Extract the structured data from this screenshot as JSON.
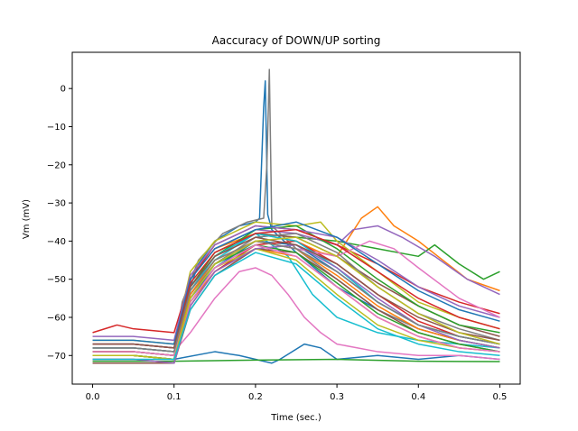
{
  "chart_data": {
    "type": "line",
    "title": "Aaccuracy of DOWN/UP sorting",
    "xlabel": "Time (sec.)",
    "ylabel": "Vm (mV)",
    "xlim": [
      -0.025,
      0.525
    ],
    "ylim": [
      -77.5,
      9.5
    ],
    "xticks": [
      0.0,
      0.1,
      0.2,
      0.3,
      0.4,
      0.5
    ],
    "xtick_labels": [
      "0.0",
      "0.1",
      "0.2",
      "0.3",
      "0.4",
      "0.5"
    ],
    "yticks": [
      0,
      -10,
      -20,
      -30,
      -40,
      -50,
      -60,
      -70
    ],
    "ytick_labels": [
      "0",
      "−10",
      "−20",
      "−30",
      "−40",
      "−50",
      "−60",
      "−70"
    ],
    "grid": false,
    "legend": "none",
    "palette": [
      "#1f77b4",
      "#ff7f0e",
      "#2ca02c",
      "#d62728",
      "#9467bd",
      "#8c564b",
      "#e377c2",
      "#7f7f7f",
      "#bcbd22",
      "#17becf"
    ],
    "series": [
      {
        "color": "#1f77b4",
        "x": [
          0.0,
          0.05,
          0.1,
          0.11,
          0.13,
          0.15,
          0.18,
          0.2,
          0.205,
          0.21,
          0.212,
          0.215,
          0.22,
          0.25,
          0.3,
          0.35,
          0.4,
          0.45,
          0.5
        ],
        "y": [
          -70,
          -70,
          -71,
          -58,
          -46,
          -40,
          -36,
          -35,
          -34,
          -5,
          2,
          -33,
          -37,
          -43,
          -52,
          -58,
          -63,
          -66,
          -68
        ]
      },
      {
        "color": "#7f7f7f",
        "x": [
          0.0,
          0.05,
          0.1,
          0.11,
          0.13,
          0.16,
          0.19,
          0.21,
          0.214,
          0.217,
          0.22,
          0.25,
          0.3,
          0.35,
          0.4,
          0.45,
          0.5
        ],
        "y": [
          -69,
          -69,
          -70,
          -56,
          -45,
          -38,
          -35,
          -34,
          -20,
          5,
          -36,
          -42,
          -50,
          -58,
          -63,
          -66,
          -68
        ]
      },
      {
        "color": "#1f77b4",
        "x": [
          0.0,
          0.05,
          0.1,
          0.15,
          0.18,
          0.2,
          0.22,
          0.23,
          0.26,
          0.28,
          0.3,
          0.35,
          0.4,
          0.45,
          0.5
        ],
        "y": [
          -70,
          -70,
          -71,
          -69,
          -70,
          -71,
          -72,
          -71,
          -67,
          -68,
          -71,
          -70,
          -71,
          -70,
          -71
        ]
      },
      {
        "color": "#2ca02c",
        "x": [
          0.0,
          0.1,
          0.2,
          0.3,
          0.4,
          0.5
        ],
        "y": [
          -71.5,
          -71.5,
          -71.2,
          -71,
          -71.5,
          -71.6
        ]
      },
      {
        "color": "#e377c2",
        "x": [
          0.0,
          0.05,
          0.1,
          0.12,
          0.15,
          0.18,
          0.2,
          0.22,
          0.24,
          0.26,
          0.28,
          0.3,
          0.35,
          0.4,
          0.45,
          0.5
        ],
        "y": [
          -68,
          -68,
          -69,
          -64,
          -55,
          -48,
          -47,
          -49,
          -54,
          -60,
          -64,
          -67,
          -69,
          -70,
          -70,
          -71
        ]
      },
      {
        "color": "#ff7f0e",
        "x": [
          0.0,
          0.05,
          0.1,
          0.12,
          0.15,
          0.2,
          0.25,
          0.28,
          0.3,
          0.33,
          0.35,
          0.37,
          0.4,
          0.43,
          0.46,
          0.5
        ],
        "y": [
          -67,
          -67,
          -68,
          -50,
          -42,
          -38,
          -40,
          -43,
          -44,
          -34,
          -31,
          -36,
          -40,
          -45,
          -50,
          -53
        ]
      },
      {
        "color": "#2ca02c",
        "x": [
          0.0,
          0.05,
          0.1,
          0.12,
          0.15,
          0.2,
          0.25,
          0.3,
          0.35,
          0.4,
          0.42,
          0.45,
          0.48,
          0.5
        ],
        "y": [
          -69,
          -69,
          -70,
          -52,
          -43,
          -38,
          -39,
          -40,
          -42,
          -44,
          -41,
          -46,
          -50,
          -48
        ]
      },
      {
        "color": "#9467bd",
        "x": [
          0.0,
          0.05,
          0.1,
          0.12,
          0.15,
          0.2,
          0.25,
          0.3,
          0.32,
          0.35,
          0.38,
          0.42,
          0.46,
          0.5
        ],
        "y": [
          -67,
          -67,
          -68,
          -50,
          -42,
          -37,
          -38,
          -41,
          -37,
          -36,
          -39,
          -44,
          -50,
          -54
        ]
      },
      {
        "color": "#d62728",
        "x": [
          0.0,
          0.03,
          0.05,
          0.1,
          0.12,
          0.15,
          0.2,
          0.25,
          0.3,
          0.35,
          0.4,
          0.45,
          0.5
        ],
        "y": [
          -64,
          -62,
          -63,
          -64,
          -50,
          -41,
          -36,
          -37,
          -41,
          -46,
          -52,
          -56,
          -59
        ]
      },
      {
        "color": "#8c564b",
        "x": [
          0.0,
          0.05,
          0.1,
          0.12,
          0.15,
          0.2,
          0.25,
          0.3,
          0.35,
          0.4,
          0.45,
          0.5
        ],
        "y": [
          -68,
          -68,
          -69,
          -52,
          -44,
          -38,
          -39,
          -44,
          -51,
          -57,
          -62,
          -65
        ]
      },
      {
        "color": "#bcbd22",
        "x": [
          0.0,
          0.05,
          0.1,
          0.12,
          0.15,
          0.2,
          0.25,
          0.28,
          0.3,
          0.35,
          0.4,
          0.45,
          0.5
        ],
        "y": [
          -66,
          -66,
          -67,
          -48,
          -40,
          -35,
          -36,
          -35,
          -40,
          -48,
          -56,
          -60,
          -63
        ]
      },
      {
        "color": "#17becf",
        "x": [
          0.0,
          0.05,
          0.1,
          0.12,
          0.15,
          0.2,
          0.24,
          0.27,
          0.3,
          0.35,
          0.4,
          0.45,
          0.5
        ],
        "y": [
          -67,
          -67,
          -68,
          -54,
          -45,
          -38,
          -44,
          -54,
          -60,
          -64,
          -66,
          -67,
          -68
        ]
      },
      {
        "color": "#1f77b4",
        "x": [
          0.0,
          0.05,
          0.1,
          0.12,
          0.15,
          0.2,
          0.25,
          0.3,
          0.35,
          0.4,
          0.45,
          0.5
        ],
        "y": [
          -69,
          -69,
          -70,
          -55,
          -47,
          -40,
          -41,
          -48,
          -56,
          -62,
          -65,
          -67
        ]
      },
      {
        "color": "#ff7f0e",
        "x": [
          0.0,
          0.05,
          0.1,
          0.12,
          0.15,
          0.2,
          0.25,
          0.3,
          0.35,
          0.4,
          0.45,
          0.5
        ],
        "y": [
          -70,
          -70,
          -71,
          -56,
          -48,
          -42,
          -44,
          -52,
          -60,
          -65,
          -68,
          -69
        ]
      },
      {
        "color": "#2ca02c",
        "x": [
          0.0,
          0.05,
          0.1,
          0.12,
          0.15,
          0.2,
          0.25,
          0.3,
          0.35,
          0.4,
          0.45,
          0.5
        ],
        "y": [
          -68,
          -68,
          -69,
          -53,
          -44,
          -37,
          -36,
          -42,
          -50,
          -57,
          -62,
          -64
        ]
      },
      {
        "color": "#d62728",
        "x": [
          0.0,
          0.05,
          0.1,
          0.12,
          0.15,
          0.2,
          0.25,
          0.3,
          0.35,
          0.4,
          0.45,
          0.5
        ],
        "y": [
          -71,
          -71,
          -72,
          -57,
          -48,
          -41,
          -40,
          -46,
          -54,
          -61,
          -65,
          -67
        ]
      },
      {
        "color": "#9467bd",
        "x": [
          0.0,
          0.05,
          0.1,
          0.12,
          0.15,
          0.2,
          0.25,
          0.3,
          0.35,
          0.4,
          0.45,
          0.5
        ],
        "y": [
          -65,
          -65,
          -66,
          -49,
          -41,
          -36,
          -37,
          -39,
          -45,
          -52,
          -57,
          -60
        ]
      },
      {
        "color": "#8c564b",
        "x": [
          0.0,
          0.05,
          0.1,
          0.12,
          0.15,
          0.2,
          0.25,
          0.3,
          0.35,
          0.4,
          0.45,
          0.5
        ],
        "y": [
          -72,
          -72,
          -72,
          -58,
          -49,
          -42,
          -43,
          -50,
          -58,
          -64,
          -67,
          -69
        ]
      },
      {
        "color": "#e377c2",
        "x": [
          0.0,
          0.05,
          0.1,
          0.12,
          0.15,
          0.2,
          0.25,
          0.3,
          0.34,
          0.37,
          0.4,
          0.45,
          0.5
        ],
        "y": [
          -68,
          -68,
          -69,
          -55,
          -46,
          -40,
          -42,
          -44,
          -40,
          -42,
          -47,
          -55,
          -60
        ]
      },
      {
        "color": "#7f7f7f",
        "x": [
          0.0,
          0.05,
          0.1,
          0.12,
          0.15,
          0.2,
          0.25,
          0.3,
          0.35,
          0.4,
          0.45,
          0.5
        ],
        "y": [
          -69,
          -69,
          -70,
          -54,
          -46,
          -39,
          -38,
          -43,
          -52,
          -59,
          -63,
          -66
        ]
      },
      {
        "color": "#bcbd22",
        "x": [
          0.0,
          0.05,
          0.1,
          0.12,
          0.15,
          0.2,
          0.25,
          0.3,
          0.35,
          0.4,
          0.45,
          0.5
        ],
        "y": [
          -70,
          -70,
          -71,
          -56,
          -47,
          -42,
          -45,
          -54,
          -62,
          -66,
          -68,
          -69
        ]
      },
      {
        "color": "#17becf",
        "x": [
          0.0,
          0.05,
          0.1,
          0.12,
          0.15,
          0.2,
          0.25,
          0.3,
          0.35,
          0.4,
          0.45,
          0.5
        ],
        "y": [
          -68,
          -68,
          -69,
          -53,
          -44,
          -38,
          -40,
          -47,
          -56,
          -62,
          -65,
          -67
        ]
      },
      {
        "color": "#1f77b4",
        "x": [
          0.0,
          0.05,
          0.1,
          0.12,
          0.15,
          0.2,
          0.25,
          0.3,
          0.35,
          0.4,
          0.45,
          0.5
        ],
        "y": [
          -66,
          -66,
          -67,
          -50,
          -42,
          -37,
          -35,
          -39,
          -46,
          -53,
          -58,
          -61
        ]
      },
      {
        "color": "#ff7f0e",
        "x": [
          0.0,
          0.05,
          0.1,
          0.12,
          0.15,
          0.2,
          0.25,
          0.3,
          0.35,
          0.4,
          0.45,
          0.5
        ],
        "y": [
          -69,
          -69,
          -70,
          -54,
          -45,
          -40,
          -42,
          -49,
          -57,
          -63,
          -66,
          -68
        ]
      },
      {
        "color": "#2ca02c",
        "x": [
          0.0,
          0.05,
          0.1,
          0.12,
          0.15,
          0.2,
          0.25,
          0.3,
          0.35,
          0.4,
          0.45,
          0.5
        ],
        "y": [
          -70,
          -70,
          -71,
          -55,
          -46,
          -41,
          -43,
          -51,
          -59,
          -64,
          -67,
          -69
        ]
      },
      {
        "color": "#d62728",
        "x": [
          0.0,
          0.05,
          0.1,
          0.12,
          0.15,
          0.2,
          0.25,
          0.3,
          0.35,
          0.4,
          0.45,
          0.5
        ],
        "y": [
          -67,
          -67,
          -68,
          -51,
          -43,
          -38,
          -37,
          -41,
          -48,
          -55,
          -60,
          -63
        ]
      },
      {
        "color": "#9467bd",
        "x": [
          0.0,
          0.05,
          0.1,
          0.12,
          0.15,
          0.2,
          0.25,
          0.3,
          0.35,
          0.4,
          0.45,
          0.5
        ],
        "y": [
          -71,
          -71,
          -72,
          -57,
          -48,
          -42,
          -41,
          -47,
          -55,
          -62,
          -66,
          -68
        ]
      },
      {
        "color": "#8c564b",
        "x": [
          0.0,
          0.05,
          0.1,
          0.12,
          0.15,
          0.2,
          0.25,
          0.3,
          0.35,
          0.4,
          0.45,
          0.5
        ],
        "y": [
          -67,
          -67,
          -68,
          -52,
          -44,
          -39,
          -41,
          -46,
          -54,
          -60,
          -64,
          -66
        ]
      },
      {
        "color": "#e377c2",
        "x": [
          0.0,
          0.05,
          0.1,
          0.12,
          0.15,
          0.2,
          0.25,
          0.3,
          0.35,
          0.4,
          0.45,
          0.5
        ],
        "y": [
          -69,
          -69,
          -70,
          -56,
          -47,
          -41,
          -44,
          -52,
          -60,
          -65,
          -68,
          -69
        ]
      },
      {
        "color": "#7f7f7f",
        "x": [
          0.0,
          0.05,
          0.1,
          0.12,
          0.15,
          0.2,
          0.25,
          0.3,
          0.35,
          0.4,
          0.45,
          0.5
        ],
        "y": [
          -68,
          -68,
          -69,
          -53,
          -45,
          -40,
          -42,
          -48,
          -56,
          -62,
          -65,
          -67
        ]
      },
      {
        "color": "#bcbd22",
        "x": [
          0.0,
          0.05,
          0.1,
          0.12,
          0.15,
          0.2,
          0.25,
          0.3,
          0.35,
          0.4,
          0.45,
          0.5
        ],
        "y": [
          -70,
          -70,
          -71,
          -55,
          -46,
          -40,
          -39,
          -44,
          -52,
          -59,
          -64,
          -67
        ]
      },
      {
        "color": "#17becf",
        "x": [
          0.0,
          0.05,
          0.1,
          0.12,
          0.15,
          0.2,
          0.25,
          0.3,
          0.35,
          0.4,
          0.45,
          0.5
        ],
        "y": [
          -71,
          -71,
          -71,
          -58,
          -49,
          -43,
          -46,
          -55,
          -63,
          -67,
          -69,
          -70
        ]
      }
    ]
  }
}
